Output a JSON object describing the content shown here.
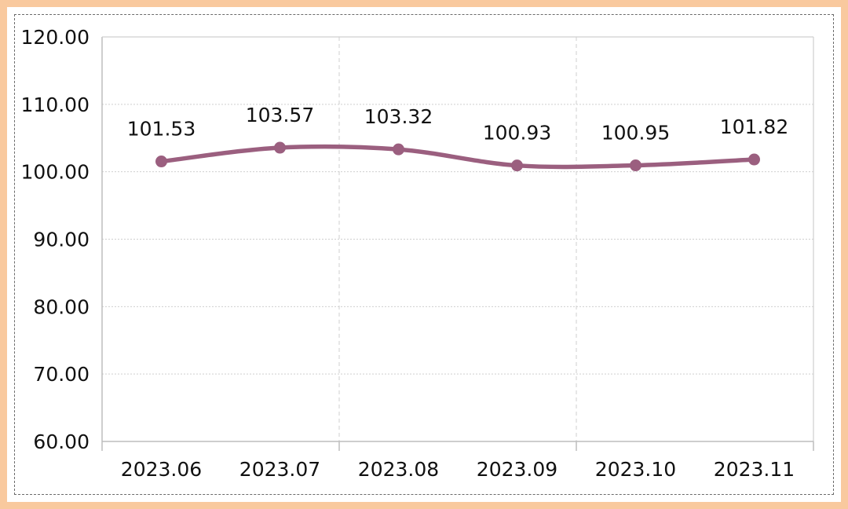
{
  "colors": {
    "frame": "#f9c99e",
    "series": "#9b5f7f",
    "grid": "#cfcfcf",
    "axis": "#bdbdbd"
  },
  "chart_data": {
    "type": "line",
    "categories": [
      "2023.06",
      "2023.07",
      "2023.08",
      "2023.09",
      "2023.10",
      "2023.11"
    ],
    "series": [
      {
        "values": [
          101.53,
          103.57,
          103.32,
          100.93,
          100.95,
          101.82
        ]
      }
    ],
    "data_labels": [
      "101.53",
      "103.57",
      "103.32",
      "100.93",
      "100.95",
      "101.82"
    ],
    "y_ticks": [
      "60.00",
      "70.00",
      "80.00",
      "90.00",
      "100.00",
      "110.00",
      "120.00"
    ],
    "ylim": [
      60,
      120
    ],
    "title": "",
    "xlabel": "",
    "ylabel": "",
    "smooth": true,
    "markers": true,
    "grid": "dashed, vertical lines between category pairs",
    "legend": "none"
  }
}
